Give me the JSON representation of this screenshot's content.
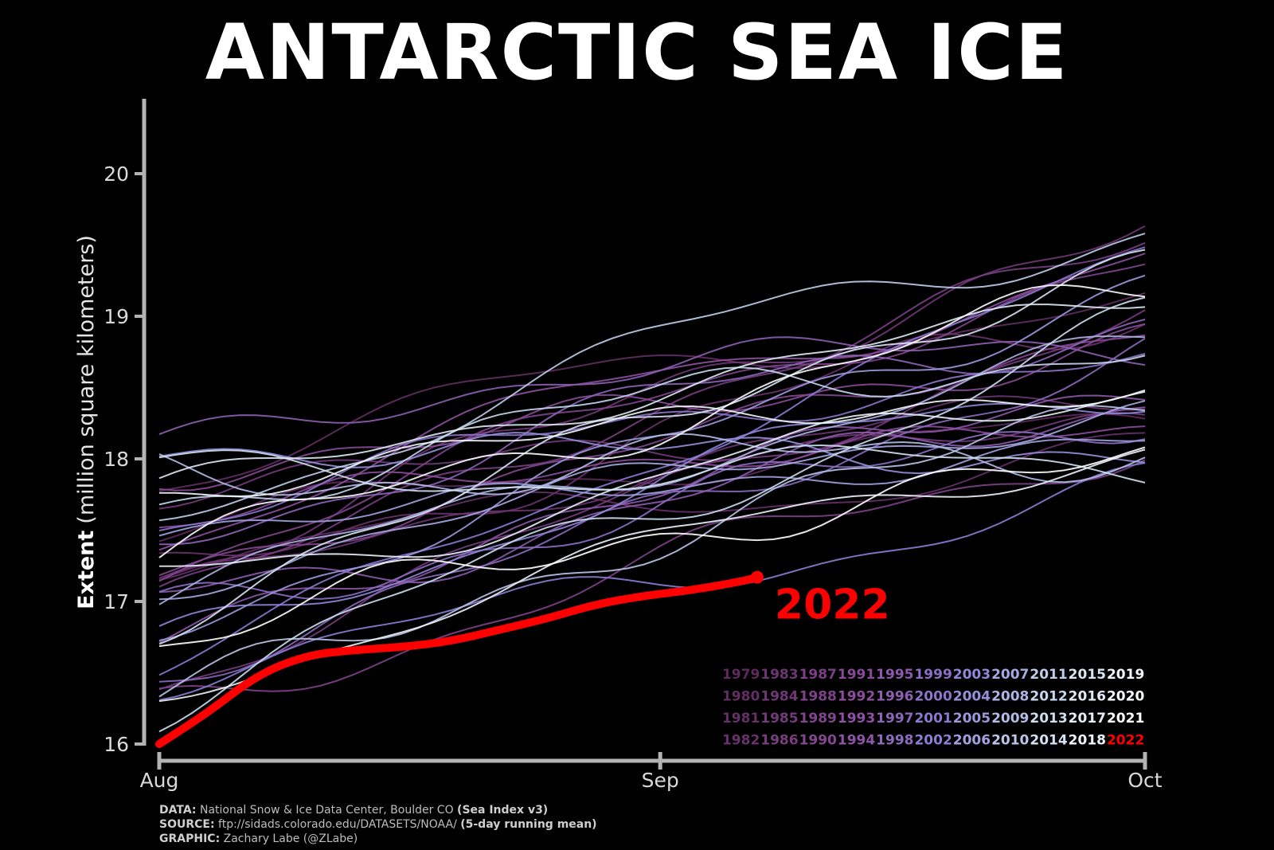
{
  "title": "ANTARCTIC SEA ICE",
  "footer": {
    "data_label": "DATA:",
    "data_text": "National Snow & Ice Data Center, Boulder CO",
    "data_bold": "(Sea Index v3)",
    "source_label": "SOURCE:",
    "source_text": "ftp://sidads.colorado.edu/DATASETS/NOAA/",
    "source_bold": "(5-day running mean)",
    "graphic_label": "GRAPHIC:",
    "graphic_text": "Zachary Labe (@ZLabe)"
  },
  "colors": {
    "background": "#000000",
    "axis": "#b3b3b3",
    "highlight": "#ff0000",
    "early_years": "#5e2a5e",
    "mid_years": "#8a7fd6",
    "late_years": "#c9dcef",
    "recent_years": "#ffffff"
  },
  "chart_data": {
    "type": "line",
    "ylabel_bold": "Extent",
    "ylabel_rest": "(million square kilometers)",
    "ylim": [
      16,
      20.5
    ],
    "yticks": [
      "16",
      "17",
      "18",
      "19",
      "20"
    ],
    "xticks": [
      "Aug",
      "Sep",
      "Oct"
    ],
    "x_domain": [
      "Aug 1",
      "Oct 1"
    ],
    "grid": false,
    "legend_position": "bottom-right",
    "legend_years": [
      [
        "1979",
        "1983",
        "1987",
        "1991",
        "1995",
        "1999",
        "2003",
        "2007",
        "2011",
        "2015",
        "2019"
      ],
      [
        "1980",
        "1984",
        "1988",
        "1992",
        "1996",
        "2000",
        "2004",
        "2008",
        "2012",
        "2016",
        "2020"
      ],
      [
        "1981",
        "1985",
        "1989",
        "1993",
        "1997",
        "2001",
        "2005",
        "2009",
        "2013",
        "2017",
        "2021"
      ],
      [
        "1982",
        "1986",
        "1990",
        "1994",
        "1998",
        "2002",
        "2006",
        "2010",
        "2014",
        "2018",
        "2022"
      ]
    ],
    "highlight_series": {
      "name": "2022",
      "x_days": [
        0,
        3,
        6,
        9,
        12,
        15,
        18,
        21,
        24,
        27,
        30,
        33,
        36,
        37
      ],
      "values": [
        16.0,
        16.22,
        16.48,
        16.62,
        16.66,
        16.68,
        16.72,
        16.8,
        16.88,
        16.98,
        17.04,
        17.08,
        17.14,
        17.17
      ]
    },
    "background_series_count": 43,
    "background_series_note": "years 1979-2021, values ranging roughly 16.2-18.1 on Aug 1 rising to 17.5-19.9 on Oct 1"
  }
}
